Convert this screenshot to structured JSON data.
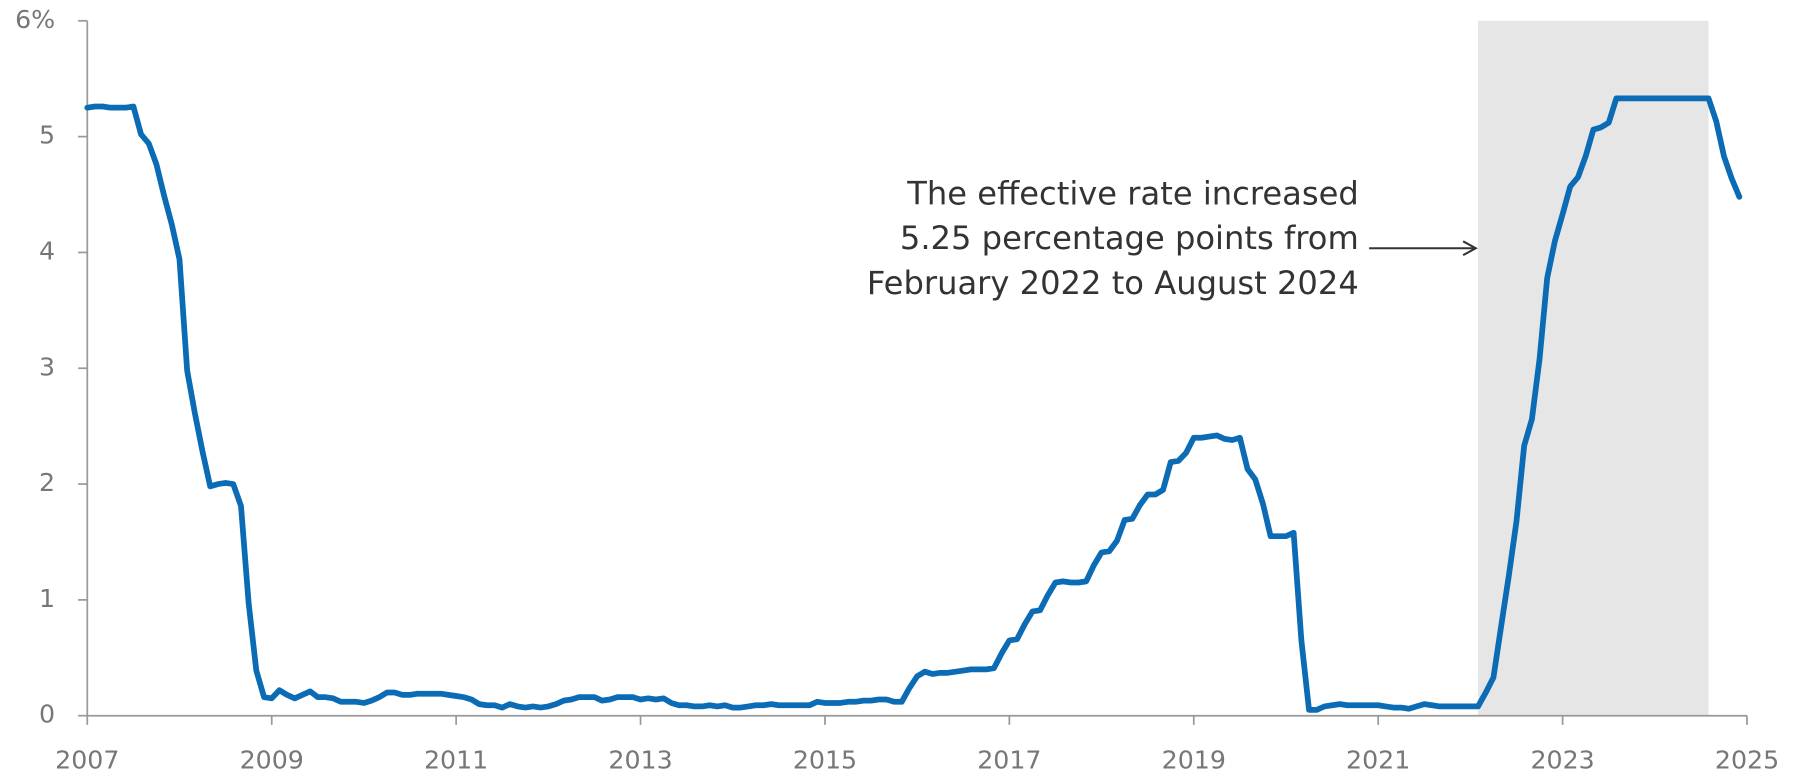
{
  "chart_data": {
    "type": "line",
    "xlim": [
      2007,
      2025
    ],
    "xticks": [
      2007,
      2009,
      2011,
      2013,
      2015,
      2017,
      2019,
      2021,
      2023,
      2025
    ],
    "ylim": [
      0,
      6
    ],
    "yticks": [
      0,
      1,
      2,
      3,
      4,
      5,
      {
        "value": 6,
        "label": "6%"
      }
    ],
    "shaded_span": [
      2022.083,
      2024.583
    ],
    "shade_color": "#e6e6e6",
    "annotation": [
      "The effective rate increased",
      "5.25 percentage points from",
      "February 2022 to August 2024"
    ],
    "x": [
      2007,
      2007.083,
      2007.167,
      2007.25,
      2007.333,
      2007.417,
      2007.5,
      2007.583,
      2007.667,
      2007.75,
      2007.833,
      2007.917,
      2008,
      2008.083,
      2008.167,
      2008.25,
      2008.333,
      2008.417,
      2008.5,
      2008.583,
      2008.667,
      2008.75,
      2008.833,
      2008.917,
      2009,
      2009.083,
      2009.167,
      2009.25,
      2009.333,
      2009.417,
      2009.5,
      2009.583,
      2009.667,
      2009.75,
      2009.833,
      2009.917,
      2010,
      2010.083,
      2010.167,
      2010.25,
      2010.333,
      2010.417,
      2010.5,
      2010.583,
      2010.667,
      2010.75,
      2010.833,
      2010.917,
      2011,
      2011.083,
      2011.167,
      2011.25,
      2011.333,
      2011.417,
      2011.5,
      2011.583,
      2011.667,
      2011.75,
      2011.833,
      2011.917,
      2012,
      2012.083,
      2012.167,
      2012.25,
      2012.333,
      2012.417,
      2012.5,
      2012.583,
      2012.667,
      2012.75,
      2012.833,
      2012.917,
      2013,
      2013.083,
      2013.167,
      2013.25,
      2013.333,
      2013.417,
      2013.5,
      2013.583,
      2013.667,
      2013.75,
      2013.833,
      2013.917,
      2014,
      2014.083,
      2014.167,
      2014.25,
      2014.333,
      2014.417,
      2014.5,
      2014.583,
      2014.667,
      2014.75,
      2014.833,
      2014.917,
      2015,
      2015.083,
      2015.167,
      2015.25,
      2015.333,
      2015.417,
      2015.5,
      2015.583,
      2015.667,
      2015.75,
      2015.833,
      2015.917,
      2016,
      2016.083,
      2016.167,
      2016.25,
      2016.333,
      2016.417,
      2016.5,
      2016.583,
      2016.667,
      2016.75,
      2016.833,
      2016.917,
      2017,
      2017.083,
      2017.167,
      2017.25,
      2017.333,
      2017.417,
      2017.5,
      2017.583,
      2017.667,
      2017.75,
      2017.833,
      2017.917,
      2018,
      2018.083,
      2018.167,
      2018.25,
      2018.333,
      2018.417,
      2018.5,
      2018.583,
      2018.667,
      2018.75,
      2018.833,
      2018.917,
      2019,
      2019.083,
      2019.167,
      2019.25,
      2019.333,
      2019.417,
      2019.5,
      2019.583,
      2019.667,
      2019.75,
      2019.833,
      2019.917,
      2020,
      2020.083,
      2020.167,
      2020.25,
      2020.333,
      2020.417,
      2020.5,
      2020.583,
      2020.667,
      2020.75,
      2020.833,
      2020.917,
      2021,
      2021.083,
      2021.167,
      2021.25,
      2021.333,
      2021.417,
      2021.5,
      2021.583,
      2021.667,
      2021.75,
      2021.833,
      2021.917,
      2022,
      2022.083,
      2022.167,
      2022.25,
      2022.333,
      2022.417,
      2022.5,
      2022.583,
      2022.667,
      2022.75,
      2022.833,
      2022.917,
      2023,
      2023.083,
      2023.167,
      2023.25,
      2023.333,
      2023.417,
      2023.5,
      2023.583,
      2023.667,
      2023.75,
      2023.833,
      2023.917,
      2024,
      2024.083,
      2024.167,
      2024.25,
      2024.333,
      2024.417,
      2024.5,
      2024.583,
      2024.667,
      2024.75,
      2024.833,
      2024.917
    ],
    "series": [
      {
        "color": "#0b6bb5",
        "values": [
          5.25,
          5.26,
          5.26,
          5.25,
          5.25,
          5.25,
          5.26,
          5.02,
          4.94,
          4.76,
          4.49,
          4.24,
          3.94,
          2.98,
          2.61,
          2.28,
          1.98,
          2.0,
          2.01,
          2.0,
          1.81,
          0.97,
          0.39,
          0.16,
          0.15,
          0.22,
          0.18,
          0.15,
          0.18,
          0.21,
          0.16,
          0.16,
          0.15,
          0.12,
          0.12,
          0.12,
          0.11,
          0.13,
          0.16,
          0.2,
          0.2,
          0.18,
          0.18,
          0.19,
          0.19,
          0.19,
          0.19,
          0.18,
          0.17,
          0.16,
          0.14,
          0.1,
          0.09,
          0.09,
          0.07,
          0.1,
          0.08,
          0.07,
          0.08,
          0.07,
          0.08,
          0.1,
          0.13,
          0.14,
          0.16,
          0.16,
          0.16,
          0.13,
          0.14,
          0.16,
          0.16,
          0.16,
          0.14,
          0.15,
          0.14,
          0.15,
          0.11,
          0.09,
          0.09,
          0.08,
          0.08,
          0.09,
          0.08,
          0.09,
          0.07,
          0.07,
          0.08,
          0.09,
          0.09,
          0.1,
          0.09,
          0.09,
          0.09,
          0.09,
          0.09,
          0.12,
          0.11,
          0.11,
          0.11,
          0.12,
          0.12,
          0.13,
          0.13,
          0.14,
          0.14,
          0.12,
          0.12,
          0.24,
          0.34,
          0.38,
          0.36,
          0.37,
          0.37,
          0.38,
          0.39,
          0.4,
          0.4,
          0.4,
          0.41,
          0.54,
          0.65,
          0.66,
          0.79,
          0.9,
          0.91,
          1.04,
          1.15,
          1.16,
          1.15,
          1.15,
          1.16,
          1.3,
          1.41,
          1.42,
          1.51,
          1.69,
          1.7,
          1.82,
          1.91,
          1.91,
          1.95,
          2.19,
          2.2,
          2.27,
          2.4,
          2.4,
          2.41,
          2.42,
          2.39,
          2.38,
          2.4,
          2.13,
          2.04,
          1.83,
          1.55,
          1.55,
          1.55,
          1.58,
          0.65,
          0.05,
          0.05,
          0.08,
          0.09,
          0.1,
          0.09,
          0.09,
          0.09,
          0.09,
          0.09,
          0.08,
          0.07,
          0.07,
          0.06,
          0.08,
          0.1,
          0.09,
          0.08,
          0.08,
          0.08,
          0.08,
          0.08,
          0.08,
          0.2,
          0.33,
          0.77,
          1.21,
          1.68,
          2.33,
          2.56,
          3.08,
          3.78,
          4.1,
          4.33,
          4.57,
          4.65,
          4.83,
          5.06,
          5.08,
          5.12,
          5.33,
          5.33,
          5.33,
          5.33,
          5.33,
          5.33,
          5.33,
          5.33,
          5.33,
          5.33,
          5.33,
          5.33,
          5.33,
          5.13,
          4.83,
          4.64,
          4.48
        ]
      }
    ]
  }
}
